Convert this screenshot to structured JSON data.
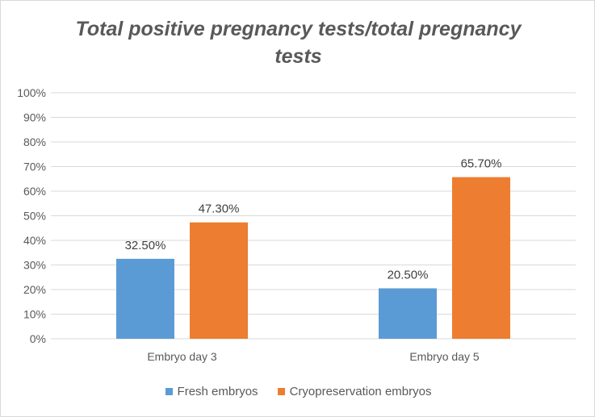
{
  "chart_data": {
    "type": "bar",
    "title": "Total positive pregnancy tests/total pregnancy tests",
    "categories": [
      "Embryo day 3",
      "Embryo day 5"
    ],
    "series": [
      {
        "name": "Fresh embryos",
        "values": [
          32.5,
          20.5
        ],
        "labels": [
          "32.50%",
          "20.50%"
        ],
        "color": "#5B9BD5"
      },
      {
        "name": "Cryopreservation embryos",
        "values": [
          47.3,
          65.7
        ],
        "labels": [
          "47.30%",
          "65.70%"
        ],
        "color": "#ED7D31"
      }
    ],
    "ylim": [
      0,
      100
    ],
    "yticks": [
      "0%",
      "10%",
      "20%",
      "30%",
      "40%",
      "50%",
      "60%",
      "70%",
      "80%",
      "90%",
      "100%"
    ],
    "grid": true,
    "legend": "bottom"
  }
}
